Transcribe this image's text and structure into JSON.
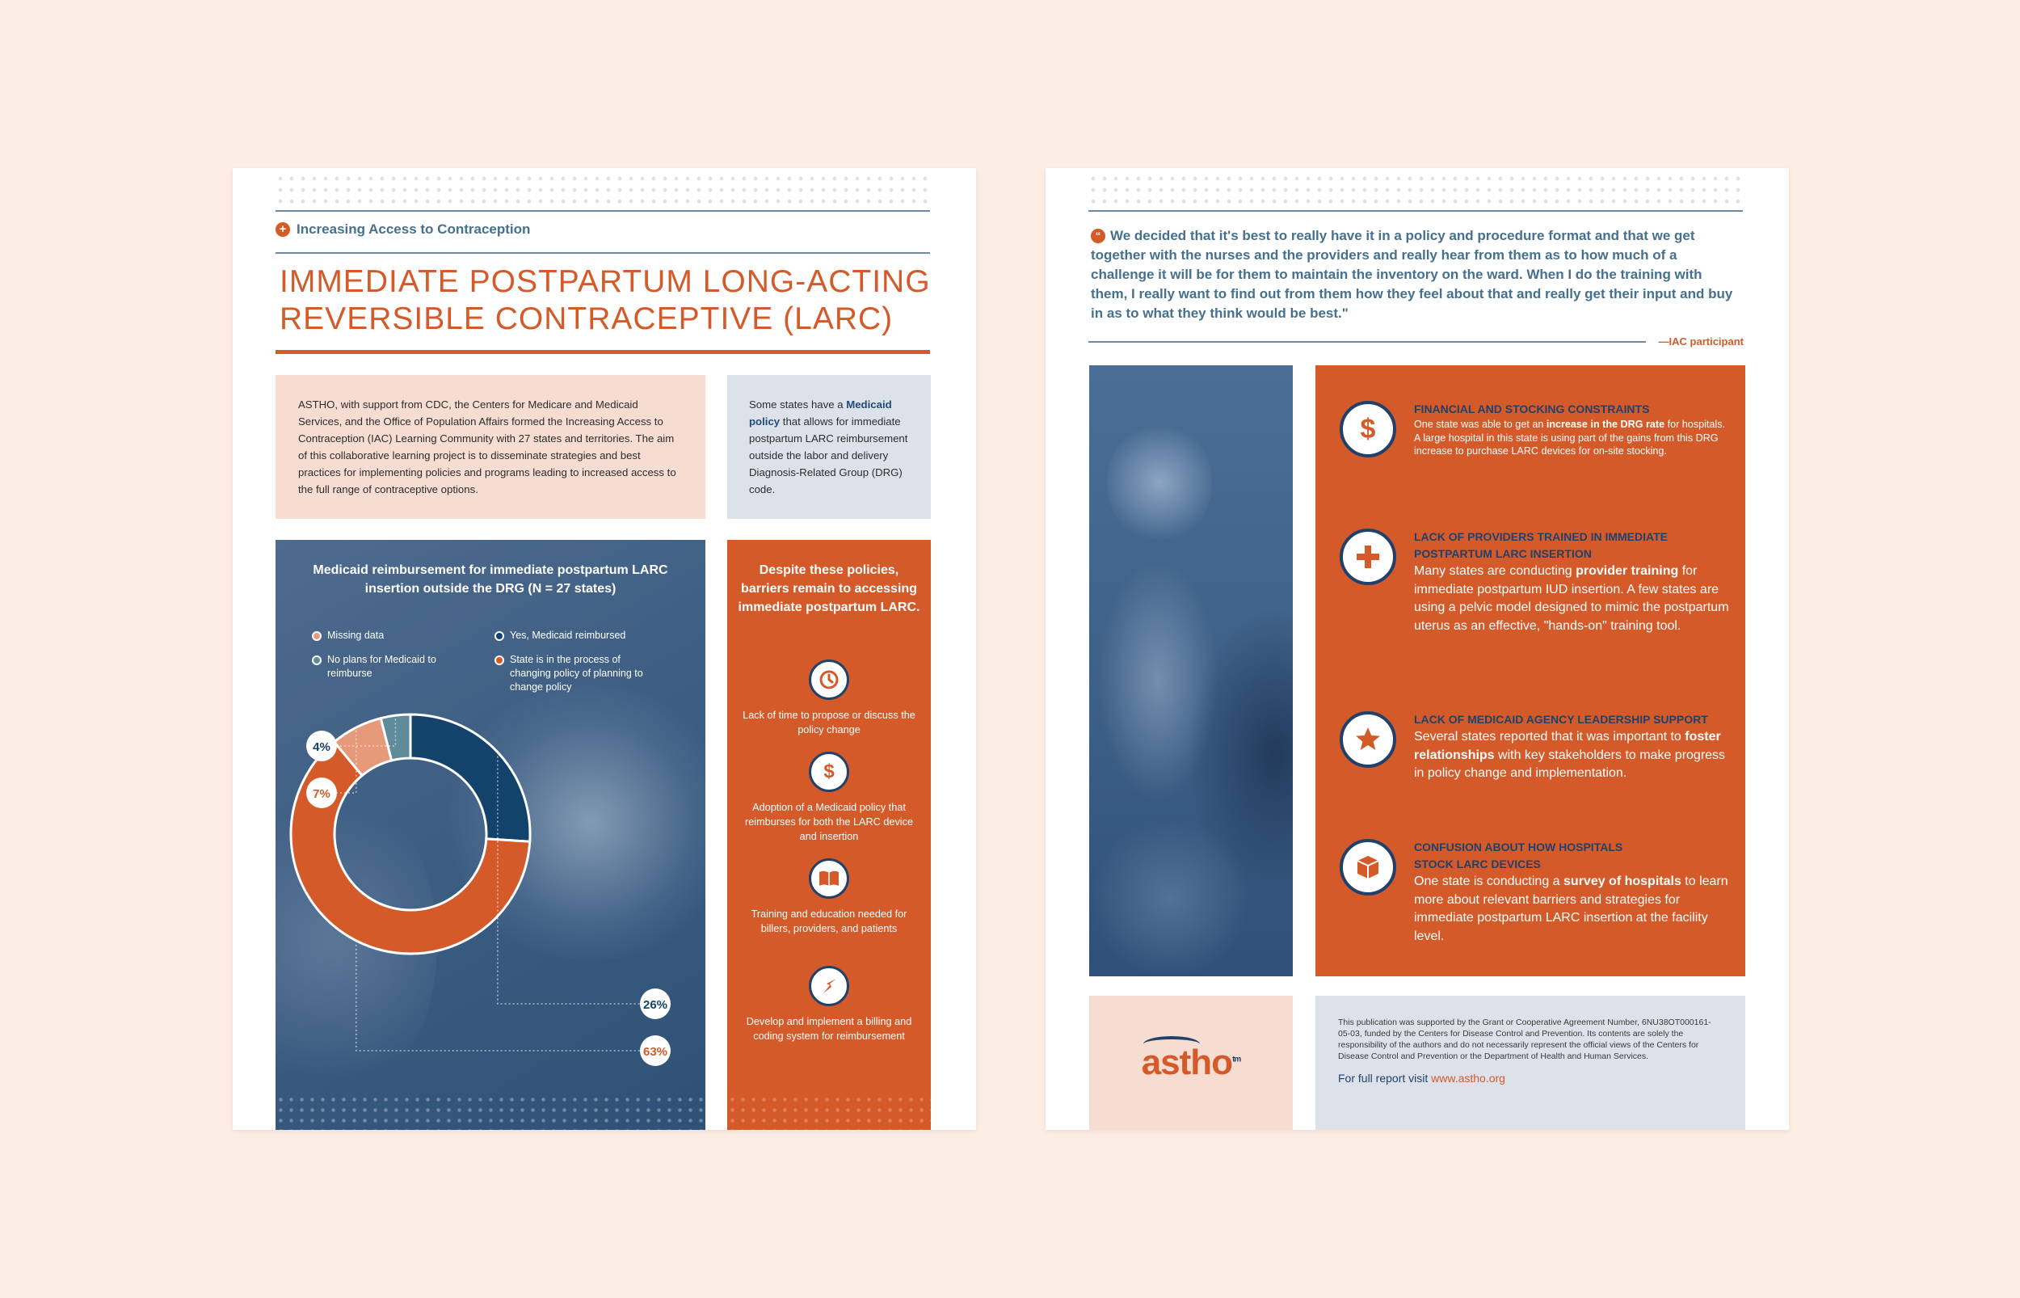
{
  "left": {
    "kicker": "Increasing Access to Contraception",
    "title_line1": "IMMEDIATE POSTPARTUM LONG-ACTING",
    "title_line2": "REVERSIBLE CONTRACEPTIVE (LARC)",
    "intro": "ASTHO, with support from CDC, the Centers for Medicare and Medicaid Services, and the Office of Population Affairs formed the Increasing Access to Contraception (IAC) Learning Community with 27 states and territories. The aim of this collaborative learning project is to disseminate strategies and best practices for implementing policies and programs leading to increased access to the full range of contraceptive options.",
    "side_pre": "Some states have a",
    "side_link": "Medicaid policy",
    "side_post": "that allows for immediate postpartum LARC reimbursement outside the labor and delivery Diagnosis-Related Group (DRG) code.",
    "barriers_title": "Despite these policies, barriers remain to accessing immediate postpartum LARC.",
    "barriers": [
      {
        "icon": "clock-icon",
        "text": "Lack of time to propose or discuss the policy change"
      },
      {
        "icon": "dollar-icon",
        "text": "Adoption of a Medicaid policy that reimburses for both the LARC device and insertion"
      },
      {
        "icon": "book-icon",
        "text": "Training and education needed for billers, providers, and patients"
      },
      {
        "icon": "arrow-icon",
        "text": "Develop and implement a billing and coding system for reimbursement"
      }
    ]
  },
  "chart_data": {
    "type": "pie",
    "title": "Medicaid reimbursement for immediate postpartum LARC insertion outside the DRG (N = 27 states)",
    "categories": [
      "Yes, Medicaid reimbursed",
      "State is in the process of changing policy of planning to change policy",
      "Missing data",
      "No plans for Medicaid to reimburse"
    ],
    "values": [
      26,
      63,
      7,
      4
    ],
    "colors": [
      "#13426b",
      "#d45a29",
      "#e79a7a",
      "#5f8c98"
    ],
    "labels": [
      "26%",
      "63%",
      "7%",
      "4%"
    ],
    "legend": [
      {
        "label": "Missing data",
        "color": "#e79a7a"
      },
      {
        "label": "Yes, Medicaid reimbursed",
        "color": "#13426b"
      },
      {
        "label": "No plans for Medicaid to reimburse",
        "color": "#5f8c98"
      },
      {
        "label": "State is in the process of changing policy of planning to change policy",
        "color": "#d45a29"
      }
    ],
    "legend_position": "top"
  },
  "right": {
    "quote": "We decided that it's best to really have it in a policy and procedure format and that we get together with the nurses and the providers and really hear from them as to how much of a challenge it will be for them to maintain the inventory on the ward. When I do the training with them, I really want to find out from them how they feel about that and really get their input and buy in as to what they think would be best.\"",
    "attribution": "—IAC participant",
    "items": [
      {
        "icon": "dollar-icon",
        "heading1": "FINANCIAL AND STOCKING CONSTRAINTS",
        "heading2": "",
        "pre": "One state was able to get an",
        "bold": "increase in the DRG rate",
        "post": "for hospitals. A large hospital in this state is using part of the gains from this DRG increase to purchase LARC devices for on-site stocking."
      },
      {
        "icon": "plus-icon",
        "heading1": "LACK OF PROVIDERS TRAINED IN IMMEDIATE",
        "heading2": "POSTPARTUM LARC INSERTION",
        "pre": "Many states are conducting",
        "bold": "provider training",
        "post": "for immediate postpartum IUD insertion. A few states are using a pelvic model designed to mimic the postpartum uterus as an effective, \"hands-on\" training tool."
      },
      {
        "icon": "star-icon",
        "heading1": "LACK OF MEDICAID AGENCY LEADERSHIP SUPPORT",
        "heading2": "",
        "pre": "Several states reported that it was important to",
        "bold": "foster relationships",
        "post": "with key stakeholders to make progress in policy change and implementation."
      },
      {
        "icon": "box-icon",
        "heading1": "CONFUSION ABOUT HOW HOSPITALS",
        "heading2": "STOCK LARC DEVICES",
        "pre": "One state is conducting a",
        "bold": "survey of hospitals",
        "post": "to learn more about relevant barriers and strategies for immediate postpartum LARC insertion at the facility level."
      }
    ],
    "logo": "astho",
    "logo_tm": "tm",
    "fine_print": "This publication was supported by the Grant or Cooperative Agreement Number, 6NU38OT000161-05-03, funded by the Centers for Disease Control and Prevention. Its contents are solely the responsibility of the authors and do not necessarily represent the official views of the Centers for Disease Control and Prevention or the Department of Health and Human Services.",
    "report_label": "For full report visit",
    "report_url": "www.astho.org"
  }
}
